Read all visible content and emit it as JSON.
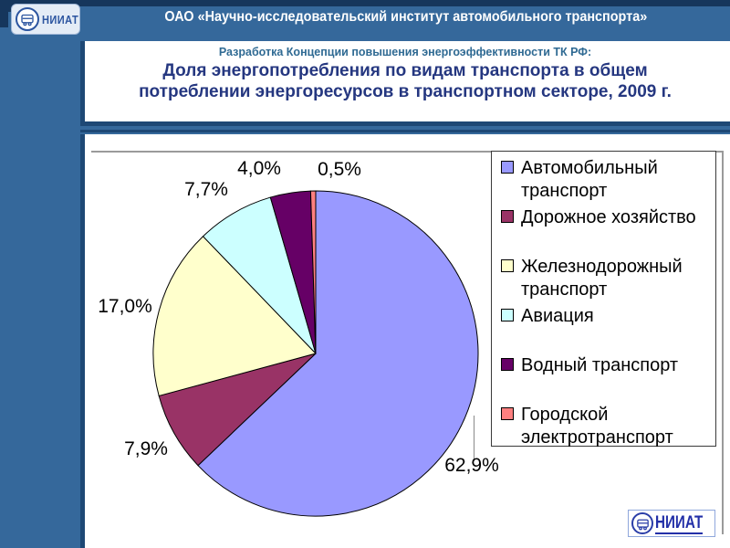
{
  "slide": {
    "background_color": "#35689B",
    "accent_navy": "#1E4875",
    "banner": "ОАО «Научно-исследовательский институт автомобильного транспорта»",
    "subtitle": "Разработка Концепции повышения энергоэффективности ТК РФ:",
    "subtitle_color": "#2F6A93",
    "title": "Доля энергопотребления по видам транспорта в общем потреблении энергоресурсов в транспортном секторе, 2009 г.",
    "title_color": "#253780"
  },
  "logo": {
    "text": "НИИАТ"
  },
  "chart_data": {
    "type": "pie",
    "title": "Доля энергопотребления по видам транспорта в общем потреблении энергоресурсов в транспортном секторе, 2009 г.",
    "categories": [
      "Автомобильный транспорт",
      "Дорожное хозяйство",
      "Железнодорожный транспорт",
      "Авиация",
      "Водный транспорт",
      "Городской электротранспорт"
    ],
    "values": [
      62.9,
      7.9,
      17.0,
      7.7,
      4.0,
      0.5
    ],
    "labels": [
      "62,9%",
      "7,9%",
      "17,0%",
      "7,7%",
      "4,0%",
      "0,5%"
    ],
    "colors": [
      "#9999FF",
      "#993366",
      "#FFFFCC",
      "#CCFFFF",
      "#660066",
      "#FF8080"
    ],
    "units": "%",
    "legend_position": "right",
    "start_angle_deg": 0,
    "direction": "clockwise"
  }
}
